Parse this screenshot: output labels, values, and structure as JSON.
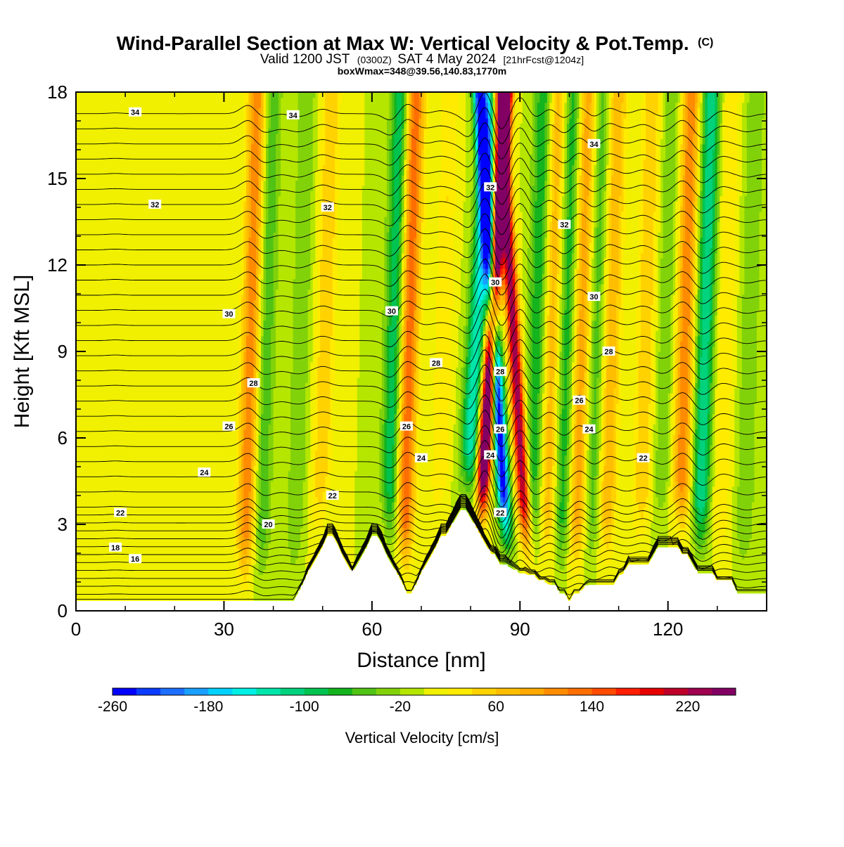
{
  "header": {
    "title": "Wind-Parallel Section at Max W: Vertical Velocity & Pot.Temp.",
    "copyright_mark": "(C)",
    "valid_prefix": "Valid 1200 JST",
    "valid_utc": "(0300Z)",
    "valid_date": "SAT 4 May 2024",
    "forecast_info": "[21hrFcst@1204z]",
    "box_info": "boxWmax=348@39.56,140.83,1770m"
  },
  "chart_data": {
    "type": "heatmap",
    "xlabel": "Distance [nm]",
    "ylabel": "Height [Kft MSL]",
    "xlim": [
      0,
      140
    ],
    "ylim": [
      0,
      18
    ],
    "xticks": [
      0,
      30,
      60,
      90,
      120
    ],
    "yticks": [
      0,
      3,
      6,
      9,
      12,
      15,
      18
    ],
    "fill_variable": "Vertical Velocity [cm/s]",
    "contour_variable": "Potential Temperature",
    "colorbar": {
      "label": "Vertical Velocity [cm/s]",
      "tick_labels": [
        "-260",
        "-180",
        "-100",
        "-20",
        "60",
        "140",
        "220"
      ],
      "tick_values": [
        -260,
        -180,
        -100,
        -20,
        60,
        140,
        220
      ],
      "levels": [
        -260,
        -240,
        -220,
        -200,
        -180,
        -160,
        -140,
        -120,
        -100,
        -80,
        -60,
        -40,
        -20,
        0,
        20,
        40,
        60,
        80,
        100,
        120,
        140,
        160,
        180,
        200,
        220,
        240,
        260
      ],
      "colors": [
        "#0000ff",
        "#0a3cff",
        "#1e6eff",
        "#19a0ff",
        "#00d2ff",
        "#00f0e6",
        "#00e6aa",
        "#00d27d",
        "#00c350",
        "#14b41e",
        "#50c314",
        "#82d20a",
        "#b4e600",
        "#f0f000",
        "#ffeb00",
        "#ffd200",
        "#ffbe00",
        "#ffaa00",
        "#ff8c00",
        "#ff6e00",
        "#ff4b00",
        "#ff1e00",
        "#e60000",
        "#be0028",
        "#a00050",
        "#820064"
      ]
    },
    "max_w_cm_s": 348,
    "terrain": {
      "x": [
        0,
        1,
        2,
        3,
        4,
        5,
        6,
        7,
        8,
        9,
        10,
        11,
        12,
        13,
        14,
        15,
        16,
        17,
        18,
        19,
        20,
        21,
        22,
        23,
        24,
        25,
        26,
        27,
        28,
        29,
        30,
        31,
        32,
        33,
        34,
        35,
        36,
        37,
        38,
        39,
        40,
        41,
        42,
        43,
        44,
        45,
        46,
        47,
        48,
        49,
        50,
        51,
        52,
        53,
        54,
        55,
        56,
        57,
        58,
        59,
        60,
        61,
        62,
        63,
        64,
        65,
        66,
        67,
        68,
        69,
        70,
        71,
        72,
        73,
        74,
        75,
        76,
        77,
        78,
        79,
        80,
        81,
        82,
        83,
        84,
        85,
        86,
        87,
        88,
        89,
        90,
        91,
        92,
        93,
        94,
        95,
        96,
        97,
        98,
        99,
        100,
        101,
        102,
        103,
        104,
        105,
        106,
        107,
        108,
        109,
        110,
        111,
        112,
        113,
        114,
        115,
        116,
        117,
        118,
        119,
        120,
        121,
        122,
        123,
        124,
        125,
        126,
        127,
        128,
        129,
        130,
        131,
        132,
        133,
        134,
        135,
        136,
        137,
        138,
        139,
        140
      ],
      "height_kft": [
        0.3,
        0.3,
        0.3,
        0.3,
        0.3,
        0.3,
        0.3,
        0.3,
        0.3,
        0.3,
        0.3,
        0.3,
        0.3,
        0.3,
        0.3,
        0.3,
        0.3,
        0.3,
        0.3,
        0.3,
        0.3,
        0.3,
        0.3,
        0.3,
        0.3,
        0.3,
        0.3,
        0.3,
        0.3,
        0.3,
        0.3,
        0.3,
        0.3,
        0.3,
        0.3,
        0.3,
        0.3,
        0.3,
        0.3,
        0.3,
        0.3,
        0.3,
        0.3,
        0.3,
        0.3,
        0.6,
        0.9,
        1.3,
        1.6,
        1.9,
        2.2,
        2.6,
        2.6,
        2.3,
        1.9,
        1.6,
        1.3,
        1.6,
        1.9,
        2.2,
        2.6,
        2.6,
        2.3,
        1.9,
        1.6,
        1.3,
        1.0,
        0.6,
        0.6,
        0.9,
        1.3,
        1.6,
        1.9,
        2.2,
        2.6,
        2.6,
        2.9,
        3.2,
        3.5,
        3.5,
        3.2,
        2.9,
        2.6,
        2.3,
        2.0,
        1.9,
        1.6,
        1.6,
        1.5,
        1.4,
        1.3,
        1.3,
        1.2,
        1.2,
        1.0,
        1.0,
        0.9,
        0.9,
        0.6,
        0.6,
        0.3,
        0.6,
        0.6,
        0.8,
        0.9,
        0.9,
        0.9,
        0.9,
        0.9,
        0.9,
        1.2,
        1.3,
        1.6,
        1.6,
        1.6,
        1.6,
        1.6,
        1.9,
        2.2,
        2.2,
        2.2,
        2.2,
        2.2,
        1.9,
        1.9,
        1.6,
        1.3,
        1.3,
        1.3,
        1.3,
        1.0,
        1.0,
        1.0,
        1.0,
        0.6,
        0.6,
        0.6,
        0.6,
        0.6,
        0.6,
        0.6
      ]
    },
    "updraft_bands": [
      {
        "x": 8,
        "max_w": 10
      },
      {
        "x": 35,
        "max_w": 120
      },
      {
        "x": 50,
        "max_w": 60
      },
      {
        "x": 67,
        "max_w": 140
      },
      {
        "x": 74,
        "max_w": 40
      },
      {
        "x": 83,
        "max_w": 348
      },
      {
        "x": 90,
        "max_w": 240
      },
      {
        "x": 96,
        "max_w": 80
      },
      {
        "x": 102,
        "max_w": 100
      },
      {
        "x": 108,
        "max_w": 80
      },
      {
        "x": 115,
        "max_w": 60
      },
      {
        "x": 123,
        "max_w": 120
      },
      {
        "x": 131,
        "max_w": 40
      }
    ],
    "downdraft_bands": [
      {
        "x": 38,
        "min_w": -60
      },
      {
        "x": 45,
        "min_w": -40
      },
      {
        "x": 64,
        "min_w": -100
      },
      {
        "x": 80,
        "min_w": -140
      },
      {
        "x": 86,
        "min_w": -260
      },
      {
        "x": 93,
        "min_w": -80
      },
      {
        "x": 99,
        "min_w": -80
      },
      {
        "x": 105,
        "min_w": -60
      },
      {
        "x": 119,
        "min_w": -40
      },
      {
        "x": 127,
        "min_w": -120
      },
      {
        "x": 136,
        "min_w": -40
      }
    ],
    "theta_contours": [
      16,
      16.5,
      17,
      17.5,
      18,
      18.5,
      19,
      19.5,
      20,
      20.5,
      21,
      21.5,
      22,
      22.5,
      23,
      23.5,
      24,
      24.5,
      25,
      25.5,
      26,
      26.5,
      27,
      27.5,
      28,
      28.5,
      29,
      29.5,
      30,
      30.5,
      31,
      31.5,
      32,
      32.5,
      33,
      33.5,
      34,
      34.5,
      35
    ],
    "contour_labels": [
      {
        "text": "34",
        "x": 12,
        "y": 17.3
      },
      {
        "text": "34",
        "x": 44,
        "y": 17.2
      },
      {
        "text": "34",
        "x": 105,
        "y": 16.2
      },
      {
        "text": "32",
        "x": 16,
        "y": 14.1
      },
      {
        "text": "32",
        "x": 51,
        "y": 14.0
      },
      {
        "text": "32",
        "x": 84,
        "y": 14.7
      },
      {
        "text": "32",
        "x": 99,
        "y": 13.4
      },
      {
        "text": "30",
        "x": 31,
        "y": 10.3
      },
      {
        "text": "30",
        "x": 64,
        "y": 10.4
      },
      {
        "text": "30",
        "x": 85,
        "y": 11.4
      },
      {
        "text": "30",
        "x": 105,
        "y": 10.9
      },
      {
        "text": "28",
        "x": 36,
        "y": 7.9
      },
      {
        "text": "28",
        "x": 73,
        "y": 8.6
      },
      {
        "text": "28",
        "x": 86,
        "y": 8.3
      },
      {
        "text": "28",
        "x": 108,
        "y": 9.0
      },
      {
        "text": "26",
        "x": 31,
        "y": 6.4
      },
      {
        "text": "26",
        "x": 67,
        "y": 6.4
      },
      {
        "text": "26",
        "x": 86,
        "y": 6.3
      },
      {
        "text": "26",
        "x": 102,
        "y": 7.3
      },
      {
        "text": "24",
        "x": 26,
        "y": 4.8
      },
      {
        "text": "24",
        "x": 70,
        "y": 5.3
      },
      {
        "text": "24",
        "x": 84,
        "y": 5.4
      },
      {
        "text": "24",
        "x": 104,
        "y": 6.3
      },
      {
        "text": "22",
        "x": 9,
        "y": 3.4
      },
      {
        "text": "22",
        "x": 52,
        "y": 4.0
      },
      {
        "text": "22",
        "x": 86,
        "y": 3.4
      },
      {
        "text": "22",
        "x": 115,
        "y": 5.3
      },
      {
        "text": "20",
        "x": 39,
        "y": 3.0
      },
      {
        "text": "18",
        "x": 8,
        "y": 2.2
      },
      {
        "text": "16",
        "x": 12,
        "y": 1.8
      }
    ]
  }
}
